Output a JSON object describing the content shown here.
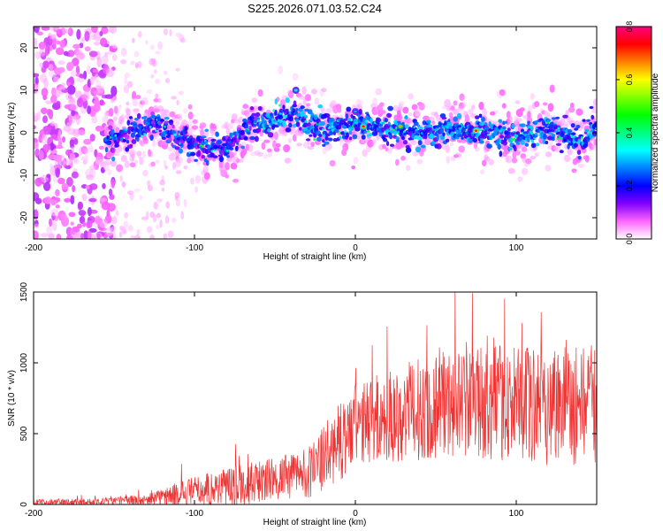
{
  "title": "S225.2026.071.03.52.C24",
  "chart_data": [
    {
      "type": "heatmap",
      "xlabel": "Height of straight line (km)",
      "ylabel": "Frequency (Hz)",
      "xlim": [
        -200,
        150
      ],
      "ylim": [
        -25,
        25
      ],
      "xticks": [
        -200,
        -100,
        0,
        100
      ],
      "yticks": [
        -20,
        -10,
        0,
        10,
        20
      ],
      "colorbar": {
        "label": "Normalized spectral amplitude",
        "range": [
          0,
          0.8
        ],
        "ticks": [
          "0.0",
          "0.2",
          "0.4",
          "0.6",
          "0.8"
        ],
        "colors": [
          "#ffffff",
          "#ff66ff",
          "#8000ff",
          "#0000ff",
          "#0080ff",
          "#00ffff",
          "#00ff80",
          "#00ff00",
          "#80ff00",
          "#ffff00",
          "#ff8000",
          "#ff0000",
          "#ff0080"
        ]
      },
      "ridge": [
        {
          "x": -155,
          "f": -2
        },
        {
          "x": -140,
          "f": 0
        },
        {
          "x": -125,
          "f": 2
        },
        {
          "x": -110,
          "f": -1
        },
        {
          "x": -95,
          "f": -3
        },
        {
          "x": -80,
          "f": -4
        },
        {
          "x": -65,
          "f": 2
        },
        {
          "x": -50,
          "f": 3
        },
        {
          "x": -40,
          "f": 5
        },
        {
          "x": -30,
          "f": 2
        },
        {
          "x": -15,
          "f": 1
        },
        {
          "x": 0,
          "f": 2
        },
        {
          "x": 20,
          "f": 1
        },
        {
          "x": 40,
          "f": 0
        },
        {
          "x": 60,
          "f": 1
        },
        {
          "x": 80,
          "f": 0
        },
        {
          "x": 100,
          "f": -1
        },
        {
          "x": 120,
          "f": 1
        },
        {
          "x": 140,
          "f": -2
        },
        {
          "x": 150,
          "f": 2
        }
      ],
      "peak_features": [
        {
          "x": -37,
          "f": 10,
          "amp": 0.35
        },
        {
          "x": 0,
          "f": 5,
          "amp": 0.3
        },
        {
          "x": 5,
          "f": 1.5,
          "amp": 0.75
        },
        {
          "x": 28,
          "f": 1.5,
          "amp": 0.65
        },
        {
          "x": 75,
          "f": 0.5,
          "amp": 0.78
        }
      ],
      "noise_region": {
        "x_from": -200,
        "x_to": -150,
        "f_from": -25,
        "f_to": 25
      }
    },
    {
      "type": "line",
      "xlabel": "Height of straight line (km)",
      "ylabel": "SNR (10 * v/v)",
      "xlim": [
        -200,
        150
      ],
      "ylim": [
        0,
        1500
      ],
      "xticks": [
        -200,
        -100,
        0,
        100
      ],
      "yticks": [
        0,
        500,
        1000,
        1500
      ],
      "series": [
        {
          "name": "SNR",
          "color": "#ee3333",
          "envelope": [
            {
              "x": -200,
              "mean": 15,
              "spread": 20
            },
            {
              "x": -160,
              "mean": 20,
              "spread": 25
            },
            {
              "x": -130,
              "mean": 30,
              "spread": 40
            },
            {
              "x": -115,
              "mean": 60,
              "spread": 80
            },
            {
              "x": -100,
              "mean": 90,
              "spread": 110
            },
            {
              "x": -80,
              "mean": 130,
              "spread": 140
            },
            {
              "x": -60,
              "mean": 160,
              "spread": 150
            },
            {
              "x": -40,
              "mean": 200,
              "spread": 160
            },
            {
              "x": -25,
              "mean": 250,
              "spread": 200
            },
            {
              "x": -15,
              "mean": 380,
              "spread": 260
            },
            {
              "x": 0,
              "mean": 550,
              "spread": 300
            },
            {
              "x": 20,
              "mean": 620,
              "spread": 330
            },
            {
              "x": 50,
              "mean": 700,
              "spread": 380
            },
            {
              "x": 80,
              "mean": 720,
              "spread": 400
            },
            {
              "x": 110,
              "mean": 700,
              "spread": 420
            },
            {
              "x": 130,
              "mean": 720,
              "spread": 450
            },
            {
              "x": 150,
              "mean": 700,
              "spread": 420
            }
          ]
        }
      ]
    }
  ]
}
